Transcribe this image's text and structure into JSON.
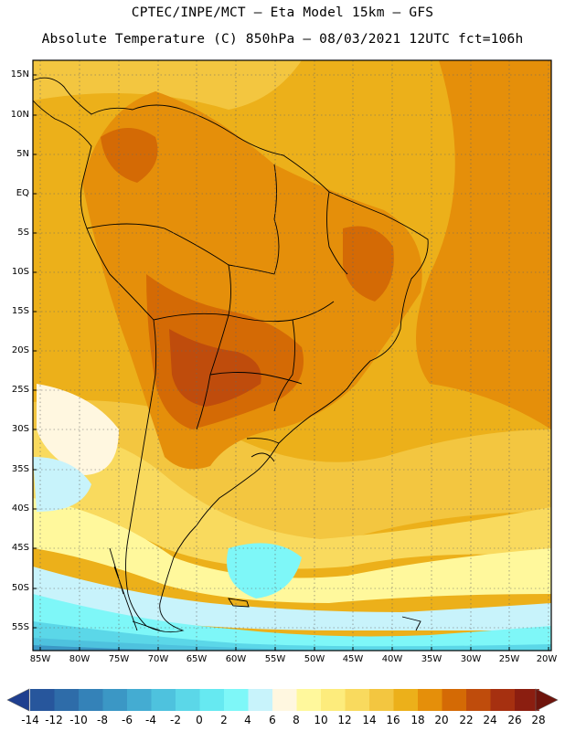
{
  "header": {
    "line1": "CPTEC/INPE/MCT –  Eta Model 15km – GFS",
    "line2": "Absolute Temperature (C) 850hPa – 08/03/2021 12UTC fct=106h"
  },
  "axes": {
    "lat_labels": [
      "15N",
      "10N",
      "5N",
      "EQ",
      "5S",
      "10S",
      "15S",
      "20S",
      "25S",
      "30S",
      "35S",
      "40S",
      "45S",
      "50S",
      "55S"
    ],
    "lon_labels": [
      "85W",
      "80W",
      "75W",
      "70W",
      "65W",
      "60W",
      "55W",
      "50W",
      "45W",
      "40W",
      "35W",
      "30W",
      "25W",
      "20W"
    ]
  },
  "colorbar": {
    "labels": [
      "-14",
      "-12",
      "-10",
      "-8",
      "-6",
      "-4",
      "-2",
      "0",
      "2",
      "4",
      "6",
      "8",
      "10",
      "12",
      "14",
      "16",
      "18",
      "20",
      "22",
      "24",
      "26",
      "28"
    ],
    "colors": [
      "#1f3f8f",
      "#27569c",
      "#2e6ca9",
      "#3482b8",
      "#3b97c5",
      "#44acd2",
      "#4ec2de",
      "#5bd7e8",
      "#66e9f1",
      "#7ef7f8",
      "#c8f3fb",
      "#fff7e0",
      "#fff89c",
      "#fdec7c",
      "#f9da5e",
      "#f3c640",
      "#ecb01a",
      "#e58f0a",
      "#d46a05",
      "#bf4c0c",
      "#a63010",
      "#8b1e10",
      "#6e140c"
    ]
  },
  "map": {
    "field_colors": {
      "ocean_warm": "#ecb01a",
      "land_warm": "#e58f0a",
      "land_hot": "#d46a05",
      "land_hottest": "#bf4c0c",
      "mid": "#f3c640",
      "mild": "#f9da5e",
      "cool": "#fff89c",
      "cream": "#fff7e0",
      "pale": "#c8f3fb",
      "cyan": "#7ef7f8",
      "cyan2": "#5bd7e8",
      "blue": "#4ec2de",
      "deep": "#3b97c5"
    }
  }
}
